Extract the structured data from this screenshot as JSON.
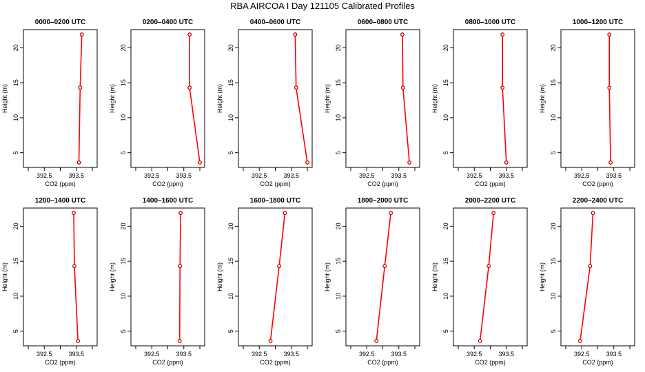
{
  "title": "RBA AIRCOA I  Day 121105  Calibrated Profiles",
  "chart_data": {
    "type": "line",
    "shared": {
      "xlabel": "CO2 (ppm)",
      "ylabel": "Height (m)",
      "x_ticks": [
        392.5,
        393.5
      ],
      "x_minor_ticks": [
        392.0,
        393.0,
        394.0
      ],
      "y_ticks": [
        5,
        10,
        15,
        20
      ],
      "xlim": [
        391.85,
        394.15
      ],
      "ylim": [
        2.9,
        22.6
      ],
      "line_color": "#ff0000",
      "marker_color": "#cc0000"
    },
    "panels": [
      {
        "title": "0000–0200 UTC",
        "heights": [
          3.6,
          14.3,
          21.9
        ],
        "co2": [
          393.58,
          393.62,
          393.67
        ]
      },
      {
        "title": "0200–0400 UTC",
        "heights": [
          3.6,
          14.3,
          21.9
        ],
        "co2": [
          394.0,
          393.68,
          393.68
        ]
      },
      {
        "title": "0400–0600 UTC",
        "heights": [
          3.6,
          14.3,
          21.9
        ],
        "co2": [
          394.0,
          393.65,
          393.62
        ]
      },
      {
        "title": "0600–0800 UTC",
        "heights": [
          3.6,
          14.3,
          21.9
        ],
        "co2": [
          393.83,
          393.63,
          393.61
        ]
      },
      {
        "title": "0800–1000 UTC",
        "heights": [
          3.6,
          14.3,
          21.9
        ],
        "co2": [
          393.5,
          393.38,
          393.38
        ]
      },
      {
        "title": "1000–1200 UTC",
        "heights": [
          3.6,
          14.3,
          21.9
        ],
        "co2": [
          393.4,
          393.36,
          393.36
        ]
      },
      {
        "title": "1200–1400 UTC",
        "heights": [
          3.6,
          14.3,
          21.9
        ],
        "co2": [
          393.55,
          393.44,
          393.42
        ]
      },
      {
        "title": "1400–1600 UTC",
        "heights": [
          3.6,
          14.3,
          21.9
        ],
        "co2": [
          393.37,
          393.38,
          393.4
        ]
      },
      {
        "title": "1600–1800 UTC",
        "heights": [
          3.6,
          14.3,
          21.9
        ],
        "co2": [
          392.85,
          393.12,
          393.3
        ]
      },
      {
        "title": "1800–2000 UTC",
        "heights": [
          3.6,
          14.3,
          21.9
        ],
        "co2": [
          392.8,
          393.06,
          393.25
        ]
      },
      {
        "title": "2000–2200 UTC",
        "heights": [
          3.6,
          14.3,
          21.9
        ],
        "co2": [
          392.68,
          392.95,
          393.1
        ]
      },
      {
        "title": "2200–2400 UTC",
        "heights": [
          3.6,
          14.3,
          21.9
        ],
        "co2": [
          392.45,
          392.76,
          392.85
        ]
      }
    ]
  }
}
